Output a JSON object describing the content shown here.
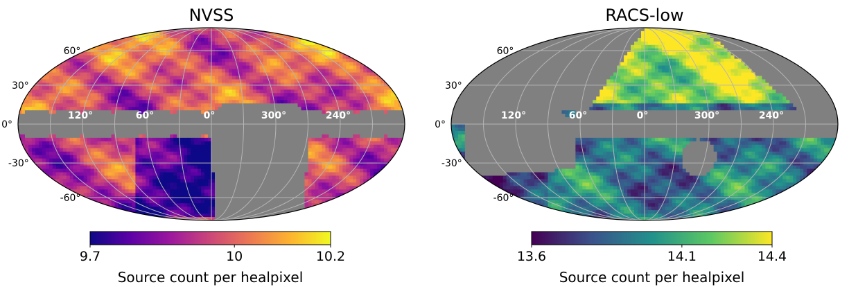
{
  "chart_data": [
    {
      "type": "heatmap",
      "projection": "mollweide",
      "title": "NVSS",
      "colormap": "plasma",
      "colormap_colors": [
        "#0d0887",
        "#5c01a6",
        "#9c179e",
        "#cc4778",
        "#ed7953",
        "#fdb42f",
        "#f0f921"
      ],
      "masked_color": "#808080",
      "grid": true,
      "lon_tick_labels": [
        "120°",
        "60°",
        "0°",
        "300°",
        "240°"
      ],
      "lat_tick_labels": [
        "60°",
        "30°",
        "0°",
        "-30°",
        "-60°"
      ],
      "colorbar": {
        "label": "Source count per healpixel",
        "range": [
          9.7,
          10.2
        ],
        "ticks": [
          {
            "value": 9.7,
            "label": "9.7"
          },
          {
            "value": 10.0,
            "label": "10"
          },
          {
            "value": 10.2,
            "label": "10.2"
          }
        ]
      }
    },
    {
      "type": "heatmap",
      "projection": "mollweide",
      "title": "RACS-low",
      "colormap": "viridis",
      "colormap_colors": [
        "#440154",
        "#3b528b",
        "#21918c",
        "#5ec962",
        "#fde725"
      ],
      "masked_color": "#808080",
      "grid": true,
      "lon_tick_labels": [
        "120°",
        "60°",
        "0°",
        "300°",
        "240°"
      ],
      "lat_tick_labels": [
        "60°",
        "30°",
        "0°",
        "-30°",
        "-60°"
      ],
      "colorbar": {
        "label": "Source count per healpixel",
        "range": [
          13.6,
          14.4
        ],
        "ticks": [
          {
            "value": 13.6,
            "label": "13.6"
          },
          {
            "value": 14.1,
            "label": "14.1"
          },
          {
            "value": 14.4,
            "label": "14.4"
          }
        ]
      }
    }
  ]
}
